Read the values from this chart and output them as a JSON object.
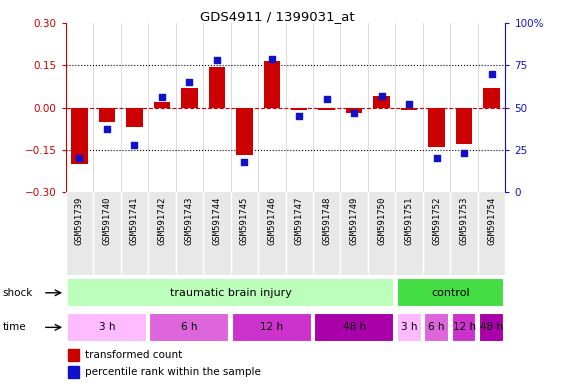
{
  "title": "GDS4911 / 1399031_at",
  "samples": [
    "GSM591739",
    "GSM591740",
    "GSM591741",
    "GSM591742",
    "GSM591743",
    "GSM591744",
    "GSM591745",
    "GSM591746",
    "GSM591747",
    "GSM591748",
    "GSM591749",
    "GSM591750",
    "GSM591751",
    "GSM591752",
    "GSM591753",
    "GSM591754"
  ],
  "bar_values": [
    -0.2,
    -0.05,
    -0.07,
    0.02,
    0.07,
    0.145,
    -0.17,
    0.165,
    -0.01,
    -0.01,
    -0.02,
    0.04,
    -0.01,
    -0.14,
    -0.13,
    0.07
  ],
  "dot_values": [
    20,
    37,
    28,
    56,
    65,
    78,
    18,
    79,
    45,
    55,
    47,
    57,
    52,
    20,
    23,
    70
  ],
  "ylim": [
    -0.3,
    0.3
  ],
  "y2lim": [
    0,
    100
  ],
  "yticks_left": [
    -0.3,
    -0.15,
    0.0,
    0.15,
    0.3
  ],
  "yticks_right": [
    0,
    25,
    50,
    75,
    100
  ],
  "bar_color": "#cc0000",
  "dot_color": "#1111cc",
  "zero_line_color": "#cc0000",
  "shock_groups": [
    {
      "label": "traumatic brain injury",
      "start": 0,
      "end": 11,
      "color": "#bbffbb"
    },
    {
      "label": "control",
      "start": 12,
      "end": 15,
      "color": "#44dd44"
    }
  ],
  "time_groups": [
    {
      "label": "3 h",
      "start": 0,
      "end": 2,
      "color": "#ffbbff"
    },
    {
      "label": "6 h",
      "start": 3,
      "end": 5,
      "color": "#dd66dd"
    },
    {
      "label": "12 h",
      "start": 6,
      "end": 8,
      "color": "#cc33cc"
    },
    {
      "label": "48 h",
      "start": 9,
      "end": 11,
      "color": "#aa00aa"
    },
    {
      "label": "3 h",
      "start": 12,
      "end": 12,
      "color": "#ffbbff"
    },
    {
      "label": "6 h",
      "start": 13,
      "end": 13,
      "color": "#dd66dd"
    },
    {
      "label": "12 h",
      "start": 14,
      "end": 14,
      "color": "#cc33cc"
    },
    {
      "label": "48 h",
      "start": 15,
      "end": 15,
      "color": "#aa00aa"
    }
  ],
  "shock_label": "shock",
  "time_label": "time",
  "legend_bar": "transformed count",
  "legend_dot": "percentile rank within the sample",
  "bg_color": "#e8e8e8",
  "plot_bg": "#ffffff"
}
